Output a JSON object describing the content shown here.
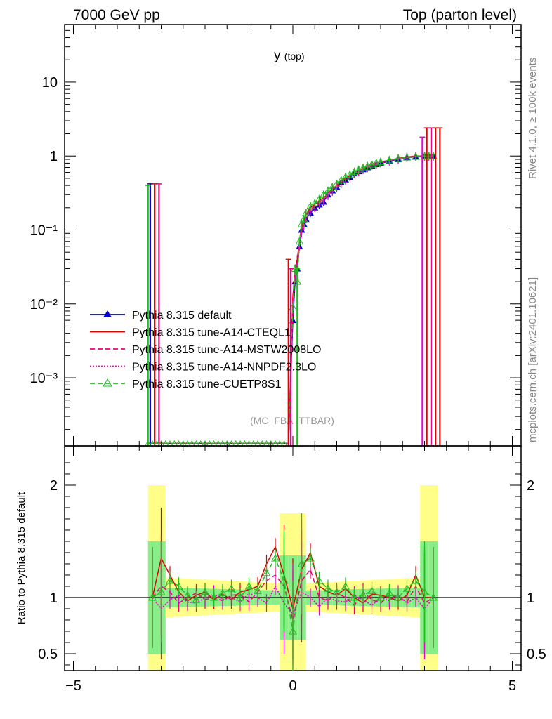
{
  "header": {
    "left": "7000 GeV pp",
    "right": "Top (parton level)"
  },
  "side": {
    "rivet": "Rivet 4.1.0, ≥ 100k events",
    "mcplots": "mcplots.cern.ch [arXiv:2401.10621]"
  },
  "chart_data": [
    {
      "type": "line",
      "panel": "main",
      "title": "y",
      "title_sub": "(top)",
      "annotation": "(MC_FBA_TTBAR)",
      "yscale": "log",
      "xlim": [
        -5.2,
        5.2
      ],
      "ylim": [
        0.00012,
        60
      ],
      "ytick_labels": [
        "10",
        "1",
        "10⁻¹",
        "10⁻²",
        "10⁻³"
      ],
      "ytick_values": [
        10,
        1,
        0.1,
        0.01,
        0.001
      ],
      "legend": [
        {
          "name": "Pythia 8.315 default",
          "color": "#0000cc",
          "style": "solid",
          "marker": "filled-triangle"
        },
        {
          "name": "Pythia 8.315 tune-A14-CTEQL1",
          "color": "#e00000",
          "style": "solid",
          "marker": "none"
        },
        {
          "name": "Pythia 8.315 tune-A14-MSTW2008LO",
          "color": "#ee0077",
          "style": "dashed",
          "marker": "none"
        },
        {
          "name": "Pythia 8.315 tune-A14-NNPDF2.3LO",
          "color": "#ee00cc",
          "style": "dotted",
          "marker": "none"
        },
        {
          "name": "Pythia 8.315 tune-CUETP8S1",
          "color": "#22bb22",
          "style": "dashed",
          "marker": "open-triangle"
        }
      ],
      "x": [
        -3.3,
        -3.1,
        -2.9,
        -2.7,
        -2.5,
        -2.3,
        -2.1,
        -1.9,
        -1.7,
        -1.5,
        -1.3,
        -1.1,
        -0.9,
        -0.7,
        -0.5,
        -0.3,
        -0.1,
        0.0,
        0.05,
        0.1,
        0.15,
        0.2,
        0.25,
        0.3,
        0.4,
        0.5,
        0.6,
        0.7,
        0.8,
        0.9,
        1.0,
        1.1,
        1.2,
        1.3,
        1.4,
        1.5,
        1.6,
        1.7,
        1.8,
        1.9,
        2.0,
        2.2,
        2.4,
        2.6,
        2.8,
        3.0,
        3.1,
        3.2
      ],
      "series": [
        {
          "name": "Pythia 8.315 default",
          "values": [
            0.00013,
            0.00013,
            0.00013,
            0.00013,
            0.00013,
            0.00013,
            0.00013,
            0.00013,
            0.00013,
            0.00013,
            0.00013,
            0.00013,
            0.00013,
            0.00013,
            0.00013,
            0.00013,
            0.00013,
            0.006,
            0.02,
            0.03,
            0.06,
            0.1,
            0.12,
            0.14,
            0.17,
            0.2,
            0.22,
            0.24,
            0.3,
            0.34,
            0.38,
            0.44,
            0.48,
            0.52,
            0.58,
            0.62,
            0.66,
            0.7,
            0.74,
            0.77,
            0.8,
            0.85,
            0.9,
            0.95,
            0.98,
            1.0,
            1.0,
            1.0
          ]
        },
        {
          "name": "Pythia 8.315 tune-A14-CTEQL1",
          "values": [
            0.00013,
            0.00013,
            0.00013,
            0.00013,
            0.00013,
            0.00013,
            0.00013,
            0.00013,
            0.00013,
            0.00013,
            0.00013,
            0.00013,
            0.00013,
            0.00013,
            0.00013,
            0.00013,
            0.00013,
            0.012,
            0.03,
            0.04,
            0.07,
            0.11,
            0.13,
            0.16,
            0.2,
            0.22,
            0.25,
            0.27,
            0.31,
            0.36,
            0.4,
            0.45,
            0.5,
            0.55,
            0.6,
            0.64,
            0.68,
            0.72,
            0.76,
            0.8,
            0.83,
            0.88,
            0.93,
            0.97,
            1.0,
            1.0,
            1.0,
            1.0
          ]
        },
        {
          "name": "Pythia 8.315 tune-A14-MSTW2008LO",
          "values": [
            0.00013,
            0.00013,
            0.00013,
            0.00013,
            0.00013,
            0.00013,
            0.00013,
            0.00013,
            0.00013,
            0.00013,
            0.00013,
            0.00013,
            0.00013,
            0.00013,
            0.00013,
            0.00013,
            0.00013,
            0.01,
            0.025,
            0.035,
            0.065,
            0.1,
            0.12,
            0.15,
            0.19,
            0.21,
            0.24,
            0.26,
            0.3,
            0.35,
            0.39,
            0.44,
            0.49,
            0.54,
            0.59,
            0.63,
            0.67,
            0.71,
            0.75,
            0.79,
            0.82,
            0.87,
            0.92,
            0.96,
            0.99,
            1.0,
            1.0,
            1.0
          ]
        },
        {
          "name": "Pythia 8.315 tune-A14-NNPDF2.3LO",
          "values": [
            0.00013,
            0.00013,
            0.00013,
            0.00013,
            0.00013,
            0.00013,
            0.00013,
            0.00013,
            0.00013,
            0.00013,
            0.00013,
            0.00013,
            0.00013,
            0.00013,
            0.00013,
            0.00013,
            0.00013,
            0.008,
            0.022,
            0.032,
            0.06,
            0.09,
            0.115,
            0.14,
            0.18,
            0.2,
            0.23,
            0.25,
            0.29,
            0.33,
            0.37,
            0.42,
            0.47,
            0.52,
            0.57,
            0.61,
            0.65,
            0.69,
            0.73,
            0.77,
            0.8,
            0.85,
            0.9,
            0.94,
            0.97,
            0.98,
            0.98,
            0.98
          ]
        },
        {
          "name": "Pythia 8.315 tune-CUETP8S1",
          "values": [
            0.00013,
            0.00013,
            0.00013,
            0.00013,
            0.00013,
            0.00013,
            0.00013,
            0.00013,
            0.00013,
            0.00013,
            0.00013,
            0.00013,
            0.00013,
            0.00013,
            0.00013,
            0.00013,
            0.00013,
            0.009,
            0.03,
            0.02,
            0.07,
            0.12,
            0.14,
            0.17,
            0.21,
            0.23,
            0.26,
            0.3,
            0.34,
            0.38,
            0.42,
            0.47,
            0.52,
            0.56,
            0.61,
            0.65,
            0.69,
            0.73,
            0.77,
            0.8,
            0.83,
            0.88,
            0.92,
            0.96,
            0.98,
            1.0,
            1.0,
            1.0
          ]
        }
      ]
    },
    {
      "type": "line",
      "panel": "ratio",
      "ylabel": "Ratio to Pythia 8.315 default",
      "xlim": [
        -5.2,
        5.2
      ],
      "ylim": [
        0.35,
        2.35
      ],
      "ytick_labels": [
        "2",
        "1",
        "0.5"
      ],
      "ytick_values": [
        2,
        1,
        0.5
      ],
      "xtick_labels": [
        "−5",
        "0",
        "5"
      ],
      "xtick_values": [
        -5,
        0,
        5
      ],
      "reference": 1.0,
      "x": [
        -3.2,
        -3.0,
        -2.8,
        -2.6,
        -2.4,
        -2.2,
        -2.0,
        -1.8,
        -1.6,
        -1.4,
        -1.2,
        -1.0,
        -0.8,
        -0.6,
        -0.4,
        -0.2,
        0.0,
        0.2,
        0.4,
        0.6,
        0.8,
        1.0,
        1.2,
        1.4,
        1.6,
        1.8,
        2.0,
        2.2,
        2.4,
        2.6,
        2.8,
        3.0,
        3.2
      ],
      "series": [
        {
          "name": "Pythia 8.315 tune-A14-CTEQL1",
          "values": [
            1.0,
            1.35,
            1.2,
            1.05,
            0.97,
            1.02,
            1.05,
            0.98,
            1.03,
            0.98,
            1.05,
            1.07,
            1.1,
            1.3,
            1.45,
            1.2,
            0.9,
            1.25,
            1.4,
            1.1,
            1.05,
            1.02,
            1.08,
            1.0,
            0.95,
            1.03,
            1.02,
            1.0,
            0.97,
            1.02,
            1.2,
            1.0,
            1.0
          ]
        },
        {
          "name": "Pythia 8.315 tune-A14-MSTW2008LO",
          "values": [
            1.0,
            1.1,
            1.05,
            0.95,
            1.0,
            1.04,
            0.98,
            1.0,
            0.97,
            1.02,
            1.03,
            0.96,
            1.05,
            1.15,
            1.2,
            1.1,
            0.8,
            1.15,
            1.25,
            1.0,
            0.97,
            1.04,
            1.0,
            0.93,
            1.05,
            0.98,
            0.95,
            1.02,
            1.0,
            0.96,
            1.1,
            0.95,
            1.0
          ]
        },
        {
          "name": "Pythia 8.315 tune-A14-NNPDF2.3LO",
          "values": [
            1.0,
            0.9,
            0.98,
            1.02,
            0.96,
            0.95,
            1.0,
            1.03,
            0.98,
            1.0,
            0.96,
            1.04,
            1.0,
            0.95,
            1.1,
            0.95,
            0.85,
            1.05,
            1.0,
            0.92,
            1.0,
            0.97,
            0.96,
            1.02,
            0.98,
            0.93,
            1.0,
            0.97,
            1.03,
            0.95,
            1.0,
            0.9,
            1.0
          ]
        },
        {
          "name": "Pythia 8.315 tune-CUETP8S1",
          "values": [
            1.0,
            1.05,
            1.15,
            1.1,
            1.02,
            0.98,
            1.05,
            1.0,
            1.04,
            1.08,
            1.0,
            1.1,
            1.06,
            1.22,
            1.35,
            1.15,
            0.7,
            1.3,
            1.35,
            1.15,
            1.08,
            1.05,
            1.1,
            1.0,
            1.02,
            1.06,
            1.0,
            1.04,
            1.0,
            1.08,
            1.15,
            1.05,
            1.0
          ]
        }
      ]
    }
  ]
}
